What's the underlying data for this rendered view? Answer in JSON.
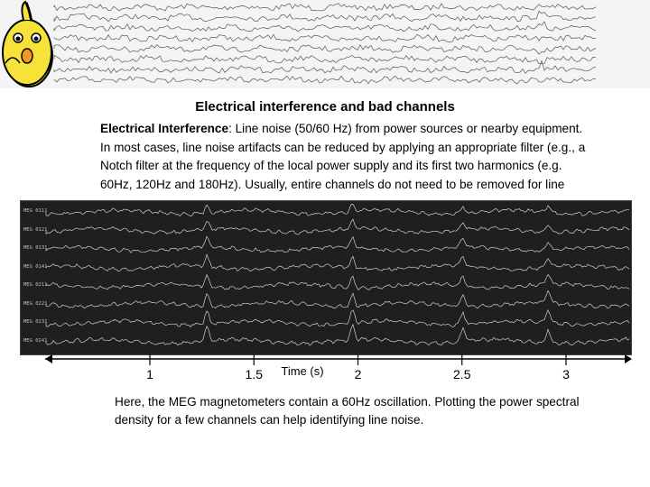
{
  "slide": {
    "title": "Electrical interference and bad channels",
    "intro_term": "Electrical Interference",
    "intro_rest": ": Line noise (50/60 Hz) from power sources or nearby equipment. In most cases, line noise artifacts can be reduced by applying an appropriate filter (e.g., a Notch filter at the frequency of the local power supply and its first two harmonics (e.g. 60Hz, 120Hz and 180Hz). Usually, entire channels do not need to be removed for line noise artifacts.",
    "caption": "Here, the MEG magnetometers contain a 60Hz oscillation. Plotting the power spectral density for a few channels can help identifying line noise."
  },
  "banner": {
    "mascot_left_icon": "chick-mascot-icon",
    "mascot_right_icon": "surprised-chick-mascot-icon"
  },
  "meg_plot": {
    "channels": [
      "MEG 0111",
      "MEG 0121",
      "MEG 0131",
      "MEG 0141",
      "MEG 0211",
      "MEG 0221",
      "MEG 0231",
      "MEG 0241"
    ],
    "trace_color": "#d0d0d0",
    "background_color": "#1f1f1f",
    "artifact_times": [
      1.27,
      1.97,
      2.5,
      2.91
    ]
  },
  "axis": {
    "xlabel": "Time (s)",
    "ticks": [
      "1",
      "1.5",
      "2",
      "2.5",
      "3"
    ]
  }
}
